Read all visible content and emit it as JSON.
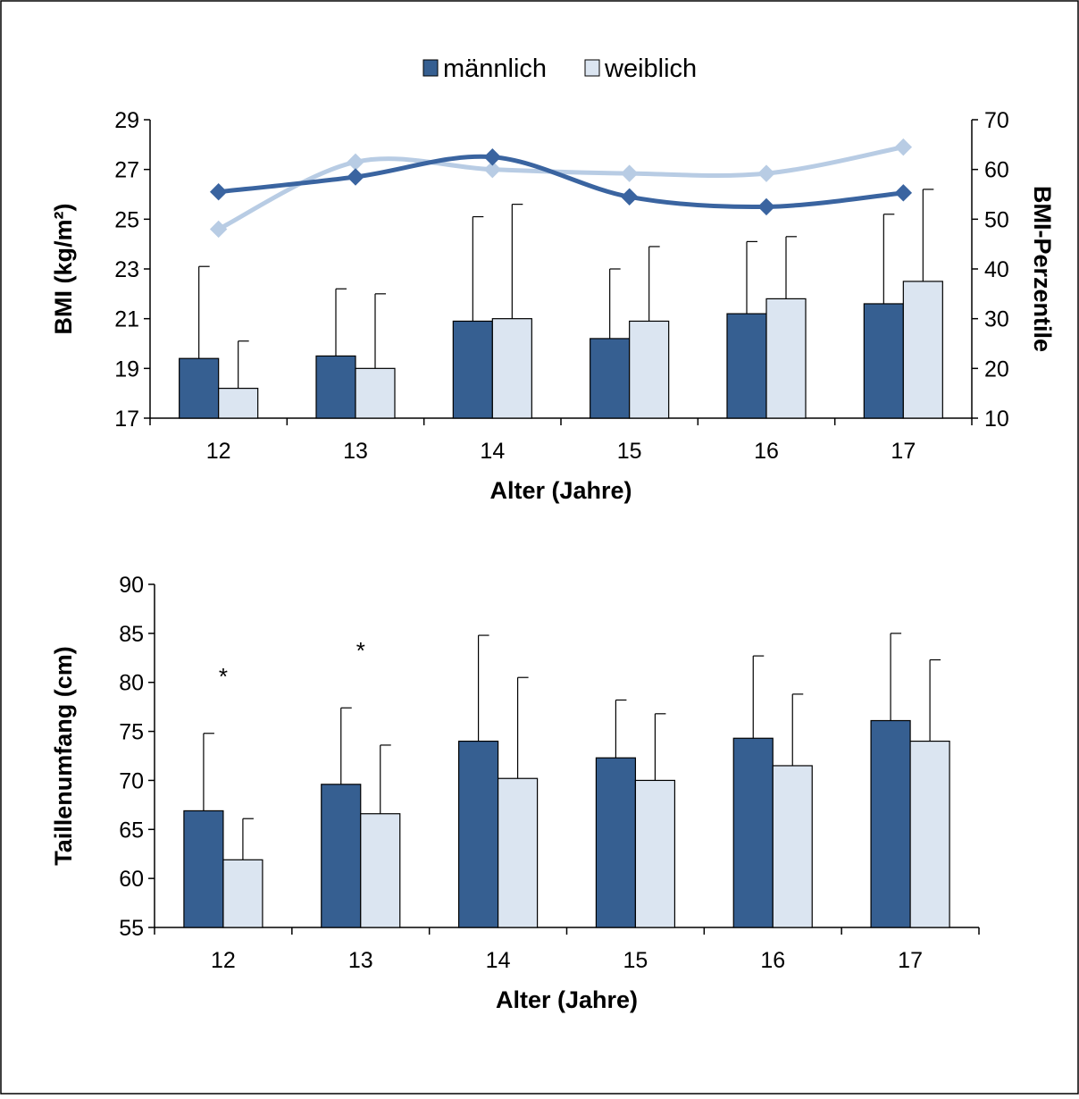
{
  "colors": {
    "male": "#365f91",
    "female_bar": "#dbe5f1",
    "male_line": "#3a64a0",
    "female_line": "#b8cce4",
    "axis": "#000000"
  },
  "legend": [
    {
      "key": "male",
      "label": "männlich"
    },
    {
      "key": "female",
      "label": "weiblich"
    }
  ],
  "chart_data": [
    {
      "type": "bar",
      "categories": [
        "12",
        "13",
        "14",
        "15",
        "16",
        "17"
      ],
      "xlabel": "Alter (Jahre)",
      "ylabel": "BMI (kg/m²)",
      "y2label": "BMI-Perzentile",
      "ylim": [
        17,
        29
      ],
      "yticks": [
        17,
        19,
        21,
        23,
        25,
        27,
        29
      ],
      "y2lim": [
        10,
        70
      ],
      "y2ticks": [
        10,
        20,
        30,
        40,
        50,
        60,
        70
      ],
      "series": [
        {
          "name": "männlich",
          "kind": "bar",
          "values": [
            19.4,
            19.5,
            20.9,
            20.2,
            21.2,
            21.6
          ],
          "error_upper": [
            23.1,
            22.2,
            25.1,
            23.0,
            24.1,
            25.2
          ]
        },
        {
          "name": "weiblich",
          "kind": "bar",
          "values": [
            18.2,
            19.0,
            21.0,
            20.9,
            21.8,
            22.5
          ],
          "error_upper": [
            20.1,
            22.0,
            25.6,
            23.9,
            24.3,
            26.2
          ]
        },
        {
          "name": "männlich",
          "kind": "line",
          "axis": "y2",
          "values": [
            55.5,
            58.5,
            62.5,
            54.5,
            52.5,
            55.3
          ]
        },
        {
          "name": "weiblich",
          "kind": "line",
          "axis": "y2",
          "values": [
            48.0,
            61.5,
            60.0,
            59.2,
            59.2,
            64.5
          ]
        }
      ],
      "grid": false
    },
    {
      "type": "bar",
      "categories": [
        "12",
        "13",
        "14",
        "15",
        "16",
        "17"
      ],
      "xlabel": "Alter (Jahre)",
      "ylabel": "Taillenumfang (cm)",
      "ylim": [
        55,
        90
      ],
      "yticks": [
        55,
        60,
        65,
        70,
        75,
        80,
        85,
        90
      ],
      "series": [
        {
          "name": "männlich",
          "kind": "bar",
          "values": [
            66.9,
            69.6,
            74.0,
            72.3,
            74.3,
            76.1
          ],
          "error_upper": [
            74.8,
            77.4,
            84.8,
            78.2,
            82.7,
            85.0
          ]
        },
        {
          "name": "weiblich",
          "kind": "bar",
          "values": [
            61.9,
            66.6,
            70.2,
            70.0,
            71.5,
            74.0
          ],
          "error_upper": [
            66.1,
            73.6,
            80.5,
            76.8,
            78.8,
            82.3
          ]
        }
      ],
      "annotations": [
        {
          "category": "12",
          "text": "*"
        },
        {
          "category": "13",
          "text": "*"
        }
      ],
      "grid": false
    }
  ]
}
